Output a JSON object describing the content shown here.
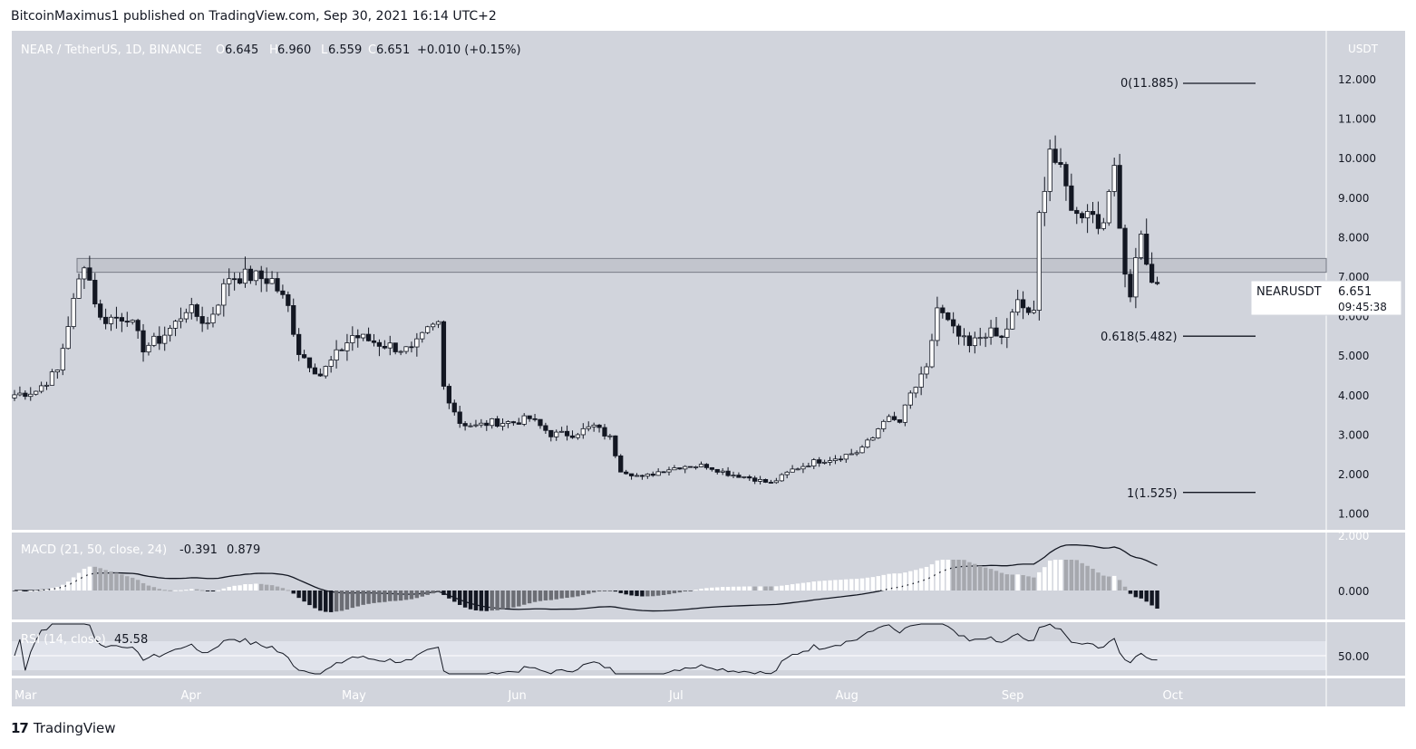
{
  "header": {
    "text": "BitcoinMaximus1 published on TradingView.com, Sep 30, 2021 16:14 UTC+2"
  },
  "footer": {
    "brand": "TradingView"
  },
  "legend": {
    "symbol": "NEAR / TetherUS, 1D, BINANCE",
    "o_label": "O",
    "o": "6.645",
    "h_label": "H",
    "h": "6.960",
    "l_label": "L",
    "l": "6.559",
    "c_label": "C",
    "c": "6.651",
    "change": "+0.010 (+0.15%)"
  },
  "price_tag": {
    "name": "NEARUSDT",
    "price": "6.651",
    "countdown": "09:45:38"
  },
  "fib": [
    {
      "label": "0(11.885)",
      "value": 11.885
    },
    {
      "label": "0.618(5.482)",
      "value": 5.482
    },
    {
      "label": "1(1.525)",
      "value": 1.525
    }
  ],
  "resistance_zone": [
    7.1,
    7.45
  ],
  "macd": {
    "label": "MACD (21, 50, close, 24)",
    "v1": "-0.391",
    "v2": "0.879",
    "ticks": [
      "2.000",
      "0.000"
    ]
  },
  "rsi": {
    "label": "RSI (14, close)",
    "value": "45.58",
    "tick": "50.00"
  },
  "colors": {
    "bg": "#d1d4dc",
    "up": "#ffffff",
    "down": "#131722",
    "line": "#131722"
  },
  "chart_data": {
    "type": "candlestick",
    "title": "NEAR / TetherUS, 1D, BINANCE",
    "y_unit": "USDT",
    "y_ticks": [
      "12.000",
      "11.000",
      "10.000",
      "9.000",
      "8.000",
      "7.000",
      "6.000",
      "5.000",
      "4.000",
      "3.000",
      "2.000",
      "1.000"
    ],
    "x_ticks": [
      "Mar",
      "Apr",
      "May",
      "Jun",
      "Jul",
      "Aug",
      "Sep",
      "Oct"
    ],
    "ylim": [
      0.5,
      12.8
    ],
    "anchors": [
      [
        "2021-03-01",
        4.0
      ],
      [
        "2021-03-05",
        4.1
      ],
      [
        "2021-03-09",
        4.6
      ],
      [
        "2021-03-11",
        5.8
      ],
      [
        "2021-03-14",
        7.4
      ],
      [
        "2021-03-17",
        5.9
      ],
      [
        "2021-03-22",
        6.0
      ],
      [
        "2021-03-25",
        5.2
      ],
      [
        "2021-03-28",
        5.4
      ],
      [
        "2021-03-31",
        5.8
      ],
      [
        "2021-04-02",
        6.2
      ],
      [
        "2021-04-06",
        5.8
      ],
      [
        "2021-04-10",
        7.0
      ],
      [
        "2021-04-14",
        7.0
      ],
      [
        "2021-04-18",
        6.9
      ],
      [
        "2021-04-21",
        6.2
      ],
      [
        "2021-04-23",
        5.1
      ],
      [
        "2021-04-27",
        4.5
      ],
      [
        "2021-04-30",
        5.0
      ],
      [
        "2021-05-03",
        5.5
      ],
      [
        "2021-05-08",
        5.3
      ],
      [
        "2021-05-11",
        5.2
      ],
      [
        "2021-05-14",
        5.1
      ],
      [
        "2021-05-17",
        5.6
      ],
      [
        "2021-05-19",
        5.8
      ],
      [
        "2021-05-20",
        4.2
      ],
      [
        "2021-05-23",
        3.3
      ],
      [
        "2021-05-26",
        3.2
      ],
      [
        "2021-05-29",
        3.3
      ],
      [
        "2021-06-02",
        3.3
      ],
      [
        "2021-06-05",
        3.4
      ],
      [
        "2021-06-09",
        3.0
      ],
      [
        "2021-06-13",
        3.0
      ],
      [
        "2021-06-17",
        3.2
      ],
      [
        "2021-06-20",
        2.9
      ],
      [
        "2021-06-22",
        2.1
      ],
      [
        "2021-06-26",
        1.9
      ],
      [
        "2021-06-30",
        2.1
      ],
      [
        "2021-07-04",
        2.2
      ],
      [
        "2021-07-08",
        2.2
      ],
      [
        "2021-07-12",
        2.0
      ],
      [
        "2021-07-16",
        1.9
      ],
      [
        "2021-07-20",
        1.75
      ],
      [
        "2021-07-24",
        2.1
      ],
      [
        "2021-07-28",
        2.3
      ],
      [
        "2021-08-01",
        2.4
      ],
      [
        "2021-08-05",
        2.55
      ],
      [
        "2021-08-08",
        2.9
      ],
      [
        "2021-08-10",
        3.4
      ],
      [
        "2021-08-13",
        3.3
      ],
      [
        "2021-08-15",
        4.0
      ],
      [
        "2021-08-18",
        4.6
      ],
      [
        "2021-08-20",
        6.2
      ],
      [
        "2021-08-23",
        5.6
      ],
      [
        "2021-08-26",
        5.2
      ],
      [
        "2021-08-29",
        5.6
      ],
      [
        "2021-09-01",
        5.4
      ],
      [
        "2021-09-04",
        6.3
      ],
      [
        "2021-09-07",
        6.0
      ],
      [
        "2021-09-08",
        8.5
      ],
      [
        "2021-09-10",
        10.3
      ],
      [
        "2021-09-11",
        9.9
      ],
      [
        "2021-09-13",
        9.2
      ],
      [
        "2021-09-15",
        8.5
      ],
      [
        "2021-09-17",
        8.8
      ],
      [
        "2021-09-19",
        8.3
      ],
      [
        "2021-09-21",
        8.9
      ],
      [
        "2021-09-22",
        9.8
      ],
      [
        "2021-09-24",
        7.1
      ],
      [
        "2021-09-25",
        6.6
      ],
      [
        "2021-09-27",
        8.2
      ],
      [
        "2021-09-28",
        7.2
      ],
      [
        "2021-09-30",
        6.65
      ]
    ]
  }
}
